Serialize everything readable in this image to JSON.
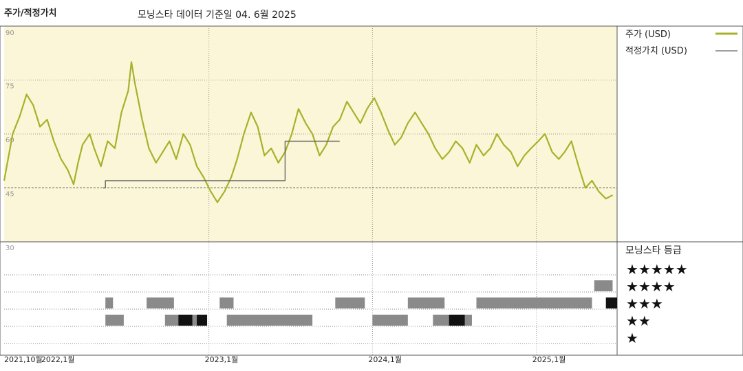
{
  "header": {
    "section_label": "주가/적정가치",
    "subtitle": "모닝스타 데이터 기준일 04. 6월 2025"
  },
  "legend": {
    "price_label": "주가 (USD)",
    "fair_value_label": "적정가치 (USD)",
    "rating_title": "모닝스타 등급",
    "stars": [
      "★★★★★",
      "★★★★",
      "★★★",
      "★★",
      "★"
    ]
  },
  "colors": {
    "price_line": "#a8b12a",
    "fair_value_line": "#666666",
    "plot_background": "#faf6d7",
    "rating_mid": "#8a8a8a",
    "rating_dark": "#111111"
  },
  "chart_data": {
    "type": "line",
    "y_ticks": [
      "90",
      "75",
      "60",
      "45",
      "30"
    ],
    "ylim": [
      30,
      90
    ],
    "x_ticks": [
      "2021,10월",
      "2022,1월",
      "2023,1월",
      "2024,1월",
      "2025,1월"
    ],
    "x_tick_dates": [
      "2021-10-01",
      "2022-01-01",
      "2023-01-01",
      "2024-01-01",
      "2025-01-01"
    ],
    "xlim": [
      "2021-10-01",
      "2025-06-30"
    ],
    "series": [
      {
        "name": "주가 (USD)",
        "points": [
          [
            "2021-10-01",
            47
          ],
          [
            "2021-10-20",
            60
          ],
          [
            "2021-11-05",
            65
          ],
          [
            "2021-11-20",
            71
          ],
          [
            "2021-12-05",
            68
          ],
          [
            "2021-12-20",
            62
          ],
          [
            "2022-01-05",
            64
          ],
          [
            "2022-01-20",
            58
          ],
          [
            "2022-02-05",
            53
          ],
          [
            "2022-02-20",
            50
          ],
          [
            "2022-03-05",
            46
          ],
          [
            "2022-03-15",
            52
          ],
          [
            "2022-03-25",
            57
          ],
          [
            "2022-04-10",
            60
          ],
          [
            "2022-04-20",
            56
          ],
          [
            "2022-05-05",
            51
          ],
          [
            "2022-05-20",
            58
          ],
          [
            "2022-06-05",
            56
          ],
          [
            "2022-06-20",
            66
          ],
          [
            "2022-07-05",
            72
          ],
          [
            "2022-07-12",
            80
          ],
          [
            "2022-07-20",
            74
          ],
          [
            "2022-08-05",
            64
          ],
          [
            "2022-08-20",
            56
          ],
          [
            "2022-09-05",
            52
          ],
          [
            "2022-09-20",
            55
          ],
          [
            "2022-10-05",
            58
          ],
          [
            "2022-10-20",
            53
          ],
          [
            "2022-11-05",
            60
          ],
          [
            "2022-11-20",
            57
          ],
          [
            "2022-12-05",
            51
          ],
          [
            "2022-12-20",
            48
          ],
          [
            "2023-01-05",
            44
          ],
          [
            "2023-01-20",
            41
          ],
          [
            "2023-02-05",
            44
          ],
          [
            "2023-02-20",
            48
          ],
          [
            "2023-03-05",
            53
          ],
          [
            "2023-03-20",
            60
          ],
          [
            "2023-04-05",
            66
          ],
          [
            "2023-04-20",
            62
          ],
          [
            "2023-05-05",
            54
          ],
          [
            "2023-05-20",
            56
          ],
          [
            "2023-06-05",
            52
          ],
          [
            "2023-06-20",
            55
          ],
          [
            "2023-07-05",
            60
          ],
          [
            "2023-07-20",
            67
          ],
          [
            "2023-08-05",
            63
          ],
          [
            "2023-08-20",
            60
          ],
          [
            "2023-09-05",
            54
          ],
          [
            "2023-09-20",
            57
          ],
          [
            "2023-10-05",
            62
          ],
          [
            "2023-10-20",
            64
          ],
          [
            "2023-11-05",
            69
          ],
          [
            "2023-11-20",
            66
          ],
          [
            "2023-12-05",
            63
          ],
          [
            "2023-12-20",
            67
          ],
          [
            "2024-01-05",
            70
          ],
          [
            "2024-01-20",
            66
          ],
          [
            "2024-02-05",
            61
          ],
          [
            "2024-02-20",
            57
          ],
          [
            "2024-03-05",
            59
          ],
          [
            "2024-03-20",
            63
          ],
          [
            "2024-04-05",
            66
          ],
          [
            "2024-04-20",
            63
          ],
          [
            "2024-05-05",
            60
          ],
          [
            "2024-05-20",
            56
          ],
          [
            "2024-06-05",
            53
          ],
          [
            "2024-06-20",
            55
          ],
          [
            "2024-07-05",
            58
          ],
          [
            "2024-07-20",
            56
          ],
          [
            "2024-08-05",
            52
          ],
          [
            "2024-08-20",
            57
          ],
          [
            "2024-09-05",
            54
          ],
          [
            "2024-09-20",
            56
          ],
          [
            "2024-10-05",
            60
          ],
          [
            "2024-10-20",
            57
          ],
          [
            "2024-11-05",
            55
          ],
          [
            "2024-11-20",
            51
          ],
          [
            "2024-12-05",
            54
          ],
          [
            "2024-12-20",
            56
          ],
          [
            "2025-01-05",
            58
          ],
          [
            "2025-01-20",
            60
          ],
          [
            "2025-02-05",
            55
          ],
          [
            "2025-02-20",
            53
          ],
          [
            "2025-03-05",
            55
          ],
          [
            "2025-03-20",
            58
          ],
          [
            "2025-04-05",
            51
          ],
          [
            "2025-04-20",
            45
          ],
          [
            "2025-05-05",
            47
          ],
          [
            "2025-05-20",
            44
          ],
          [
            "2025-06-05",
            42
          ],
          [
            "2025-06-20",
            43
          ]
        ]
      },
      {
        "name": "적정가치 (USD)",
        "step": true,
        "points": [
          [
            "2022-05-10",
            45
          ],
          [
            "2022-05-15",
            47
          ],
          [
            "2023-06-15",
            47
          ],
          [
            "2023-06-20",
            58
          ],
          [
            "2023-10-20",
            58
          ]
        ]
      }
    ]
  },
  "rating_data": {
    "segments": [
      {
        "start": "2022-05-15",
        "end": "2022-06-01",
        "stars": 3,
        "shade": "mid"
      },
      {
        "start": "2022-05-15",
        "end": "2022-06-25",
        "stars": 2,
        "shade": "mid"
      },
      {
        "start": "2022-08-15",
        "end": "2022-10-15",
        "stars": 3,
        "shade": "mid"
      },
      {
        "start": "2022-09-25",
        "end": "2022-12-25",
        "stars": 2,
        "shade": "mid"
      },
      {
        "start": "2022-10-25",
        "end": "2022-11-25",
        "stars": 2,
        "shade": "dark"
      },
      {
        "start": "2022-12-05",
        "end": "2022-12-28",
        "stars": 2,
        "shade": "dark"
      },
      {
        "start": "2023-01-25",
        "end": "2023-02-25",
        "stars": 3,
        "shade": "mid"
      },
      {
        "start": "2023-02-10",
        "end": "2023-08-20",
        "stars": 2,
        "shade": "mid"
      },
      {
        "start": "2023-10-10",
        "end": "2023-12-15",
        "stars": 3,
        "shade": "mid"
      },
      {
        "start": "2024-01-01",
        "end": "2024-03-20",
        "stars": 2,
        "shade": "mid"
      },
      {
        "start": "2024-03-20",
        "end": "2024-06-10",
        "stars": 3,
        "shade": "mid"
      },
      {
        "start": "2024-05-15",
        "end": "2024-08-10",
        "stars": 2,
        "shade": "mid"
      },
      {
        "start": "2024-06-20",
        "end": "2024-07-25",
        "stars": 2,
        "shade": "dark"
      },
      {
        "start": "2024-08-20",
        "end": "2025-05-05",
        "stars": 3,
        "shade": "mid"
      },
      {
        "start": "2025-05-10",
        "end": "2025-06-20",
        "stars": 4,
        "shade": "mid"
      },
      {
        "start": "2025-06-05",
        "end": "2025-06-30",
        "stars": 3,
        "shade": "dark"
      }
    ]
  }
}
